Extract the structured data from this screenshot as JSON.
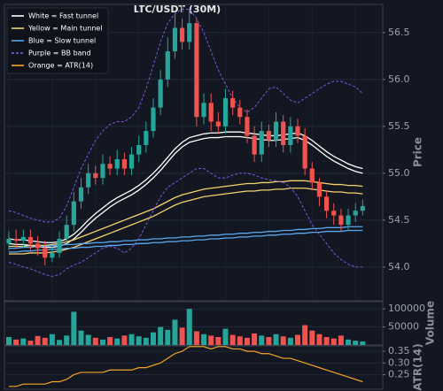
{
  "chart_data": [
    {
      "type": "candlestick",
      "title": "LTC/USDT (30M)",
      "ylabel": "Price",
      "ylim": [
        53.64,
        56.8
      ],
      "yticks": [
        {
          "value": 54,
          "label": "54.0"
        },
        54.5,
        {
          "value": 55,
          "label": "55.0"
        },
        55.5,
        {
          "value": 56,
          "label": "56.0"
        },
        56.5
      ],
      "grid": true,
      "legend_loc": "upper left",
      "up_color": "#26a69a",
      "down_color": "#ef5350",
      "open": [
        54.25,
        54.3,
        54.28,
        54.32,
        54.25,
        54.2,
        54.1,
        54.15,
        54.3,
        54.45,
        54.7,
        54.85,
        55.0,
        54.95,
        55.1,
        55.05,
        55.15,
        55.05,
        55.2,
        55.3,
        55.45,
        55.7,
        56.0,
        56.3,
        56.55,
        56.4,
        56.6,
        55.6,
        55.75,
        55.55,
        55.5,
        55.8,
        55.7,
        55.6,
        55.4,
        55.2,
        55.45,
        55.35,
        55.55,
        55.3,
        55.5,
        55.4,
        55.05,
        54.9,
        54.75,
        54.6,
        54.55,
        54.45,
        54.55,
        54.6
      ],
      "high": [
        54.38,
        54.4,
        54.4,
        54.4,
        54.33,
        54.28,
        54.22,
        54.38,
        54.55,
        54.8,
        54.95,
        55.1,
        55.08,
        55.2,
        55.18,
        55.25,
        55.22,
        55.28,
        55.4,
        55.55,
        55.8,
        56.1,
        56.45,
        56.7,
        56.65,
        56.75,
        56.65,
        55.85,
        55.85,
        55.65,
        55.9,
        55.88,
        55.78,
        55.68,
        55.5,
        55.55,
        55.52,
        55.65,
        55.62,
        55.6,
        55.58,
        55.48,
        55.12,
        54.95,
        54.82,
        54.68,
        54.62,
        54.62,
        54.68,
        54.72
      ],
      "low": [
        54.18,
        54.2,
        54.2,
        54.18,
        54.12,
        54.02,
        54.05,
        54.1,
        54.25,
        54.38,
        54.62,
        54.78,
        54.88,
        54.88,
        54.98,
        54.98,
        54.98,
        54.98,
        55.12,
        55.22,
        55.38,
        55.62,
        55.92,
        56.22,
        56.32,
        56.32,
        55.5,
        55.52,
        55.45,
        55.42,
        55.42,
        55.62,
        55.52,
        55.32,
        55.12,
        55.12,
        55.28,
        55.28,
        55.22,
        55.22,
        55.32,
        54.98,
        54.82,
        54.65,
        54.52,
        54.45,
        54.38,
        54.4,
        54.48,
        54.55
      ],
      "close": [
        54.3,
        54.28,
        54.32,
        54.25,
        54.2,
        54.1,
        54.15,
        54.3,
        54.45,
        54.7,
        54.85,
        55.0,
        54.95,
        55.1,
        55.05,
        55.15,
        55.05,
        55.2,
        55.3,
        55.45,
        55.7,
        56.0,
        56.3,
        56.55,
        56.4,
        56.6,
        55.6,
        55.75,
        55.55,
        55.5,
        55.8,
        55.7,
        55.6,
        55.4,
        55.2,
        55.45,
        55.35,
        55.55,
        55.3,
        55.5,
        55.4,
        55.05,
        54.9,
        54.75,
        54.6,
        54.55,
        54.45,
        54.55,
        54.6,
        54.65
      ],
      "lines": [
        {
          "name": "White = Fast tunnel",
          "color": "#ffffff",
          "style": "solid",
          "values": [
            54.3,
            54.29,
            54.29,
            54.28,
            54.27,
            54.26,
            54.26,
            54.27,
            54.3,
            54.35,
            54.42,
            54.5,
            54.57,
            54.63,
            54.69,
            54.74,
            54.78,
            54.82,
            54.87,
            54.93,
            55.0,
            55.08,
            55.17,
            55.26,
            55.33,
            55.38,
            55.4,
            55.42,
            55.43,
            55.43,
            55.44,
            55.44,
            55.44,
            55.43,
            55.42,
            55.41,
            55.4,
            55.4,
            55.41,
            55.42,
            55.43,
            55.4,
            55.35,
            55.29,
            55.23,
            55.18,
            55.14,
            55.1,
            55.07,
            55.05
          ],
          "lower": [
            54.25,
            54.24,
            54.24,
            54.23,
            54.22,
            54.21,
            54.21,
            54.22,
            54.25,
            54.3,
            54.37,
            54.45,
            54.52,
            54.58,
            54.64,
            54.69,
            54.73,
            54.77,
            54.82,
            54.88,
            54.95,
            55.03,
            55.12,
            55.21,
            55.28,
            55.33,
            55.35,
            55.37,
            55.38,
            55.38,
            55.39,
            55.39,
            55.39,
            55.38,
            55.37,
            55.36,
            55.35,
            55.35,
            55.36,
            55.37,
            55.38,
            55.35,
            55.3,
            55.24,
            55.18,
            55.13,
            55.09,
            55.05,
            55.02,
            55.0
          ]
        },
        {
          "name": "Yellow = Main tunnel",
          "color": "#f5d36b",
          "style": "solid",
          "values": [
            54.22,
            54.22,
            54.22,
            54.23,
            54.23,
            54.23,
            54.24,
            54.25,
            54.27,
            54.29,
            54.32,
            54.35,
            54.38,
            54.41,
            54.44,
            54.47,
            54.5,
            54.53,
            54.56,
            54.59,
            54.62,
            54.66,
            54.7,
            54.74,
            54.77,
            54.79,
            54.81,
            54.83,
            54.84,
            54.85,
            54.86,
            54.87,
            54.88,
            54.89,
            54.89,
            54.9,
            54.9,
            54.91,
            54.91,
            54.92,
            54.92,
            54.92,
            54.91,
            54.9,
            54.89,
            54.88,
            54.88,
            54.87,
            54.87,
            54.86
          ],
          "lower": [
            54.14,
            54.14,
            54.14,
            54.15,
            54.15,
            54.15,
            54.16,
            54.17,
            54.19,
            54.21,
            54.24,
            54.27,
            54.3,
            54.33,
            54.36,
            54.39,
            54.42,
            54.45,
            54.48,
            54.51,
            54.54,
            54.58,
            54.62,
            54.66,
            54.69,
            54.71,
            54.73,
            54.75,
            54.76,
            54.77,
            54.78,
            54.79,
            54.8,
            54.81,
            54.81,
            54.82,
            54.82,
            54.83,
            54.83,
            54.84,
            54.84,
            54.84,
            54.83,
            54.82,
            54.81,
            54.8,
            54.8,
            54.79,
            54.79,
            54.78
          ]
        },
        {
          "name": "Blue = Slow tunnel",
          "color": "#5aa9f0",
          "style": "solid",
          "values": [
            54.2,
            54.2,
            54.21,
            54.21,
            54.22,
            54.22,
            54.23,
            54.23,
            54.24,
            54.24,
            54.25,
            54.25,
            54.26,
            54.26,
            54.27,
            54.27,
            54.28,
            54.28,
            54.29,
            54.29,
            54.3,
            54.3,
            54.31,
            54.31,
            54.32,
            54.32,
            54.33,
            54.33,
            54.34,
            54.34,
            54.35,
            54.35,
            54.36,
            54.36,
            54.37,
            54.37,
            54.38,
            54.38,
            54.39,
            54.39,
            54.4,
            54.4,
            54.41,
            54.41,
            54.42,
            54.42,
            54.42,
            54.43,
            54.43,
            54.43
          ],
          "lower": [
            54.16,
            54.16,
            54.17,
            54.17,
            54.18,
            54.18,
            54.19,
            54.19,
            54.2,
            54.2,
            54.21,
            54.21,
            54.22,
            54.22,
            54.23,
            54.23,
            54.24,
            54.24,
            54.25,
            54.25,
            54.26,
            54.26,
            54.27,
            54.27,
            54.28,
            54.28,
            54.29,
            54.29,
            54.3,
            54.3,
            54.31,
            54.31,
            54.32,
            54.32,
            54.33,
            54.33,
            54.34,
            54.34,
            54.35,
            54.35,
            54.36,
            54.36,
            54.37,
            54.37,
            54.38,
            54.38,
            54.38,
            54.39,
            54.39,
            54.39
          ]
        },
        {
          "name": "Purple = BB band",
          "color": "#8a5cf0",
          "style": "dashed",
          "values": [
            54.6,
            54.58,
            54.55,
            54.52,
            54.5,
            54.48,
            54.48,
            54.52,
            54.65,
            54.85,
            55.05,
            55.2,
            55.35,
            55.45,
            55.52,
            55.55,
            55.55,
            55.6,
            55.7,
            55.9,
            56.15,
            56.4,
            56.6,
            56.7,
            56.75,
            56.75,
            56.65,
            56.5,
            56.3,
            56.1,
            55.95,
            55.8,
            55.7,
            55.65,
            55.7,
            55.8,
            55.9,
            55.92,
            55.85,
            55.78,
            55.75,
            55.8,
            55.85,
            55.9,
            55.95,
            55.98,
            55.98,
            55.95,
            55.92,
            55.85
          ],
          "lower": [
            54.05,
            54.03,
            54.0,
            53.98,
            53.95,
            53.92,
            53.9,
            53.92,
            53.98,
            54.02,
            54.05,
            54.1,
            54.15,
            54.2,
            54.22,
            54.2,
            54.15,
            54.2,
            54.3,
            54.45,
            54.6,
            54.75,
            54.85,
            54.9,
            54.95,
            55.0,
            55.05,
            55.05,
            55.0,
            54.95,
            54.95,
            54.98,
            55.0,
            55.0,
            54.98,
            54.95,
            54.93,
            54.92,
            54.9,
            54.85,
            54.75,
            54.6,
            54.45,
            54.35,
            54.25,
            54.15,
            54.08,
            54.03,
            54.0,
            54.0
          ]
        }
      ]
    },
    {
      "type": "bar",
      "ylabel": "Volume",
      "ylim": [
        0,
        120000
      ],
      "yticks": [
        50000,
        100000
      ],
      "values": [
        22000,
        15000,
        18000,
        12000,
        25000,
        20000,
        30000,
        14000,
        26000,
        92000,
        40000,
        28000,
        20000,
        15000,
        22000,
        18000,
        26000,
        30000,
        24000,
        20000,
        35000,
        50000,
        42000,
        70000,
        48000,
        100000,
        38000,
        30000,
        26000,
        22000,
        45000,
        28000,
        24000,
        20000,
        32000,
        26000,
        22000,
        30000,
        24000,
        20000,
        28000,
        55000,
        40000,
        30000,
        22000,
        18000,
        26000,
        15000,
        12000,
        10000
      ]
    },
    {
      "type": "line",
      "ylabel": "ATR(14)",
      "ylim": [
        0.188,
        0.373
      ],
      "yticks": [
        0.25,
        {
          "value": 0.3,
          "label": "0.30"
        },
        0.35
      ],
      "series": [
        {
          "name": "Orange = ATR(14)",
          "color": "#f5a623",
          "values": [
            0.2,
            0.2,
            0.21,
            0.21,
            0.21,
            0.21,
            0.22,
            0.22,
            0.23,
            0.25,
            0.26,
            0.26,
            0.26,
            0.26,
            0.27,
            0.27,
            0.27,
            0.27,
            0.28,
            0.28,
            0.29,
            0.3,
            0.32,
            0.34,
            0.35,
            0.37,
            0.37,
            0.37,
            0.36,
            0.37,
            0.37,
            0.36,
            0.36,
            0.35,
            0.35,
            0.34,
            0.34,
            0.33,
            0.32,
            0.32,
            0.31,
            0.3,
            0.29,
            0.28,
            0.27,
            0.26,
            0.25,
            0.24,
            0.23,
            0.22
          ]
        }
      ]
    }
  ]
}
